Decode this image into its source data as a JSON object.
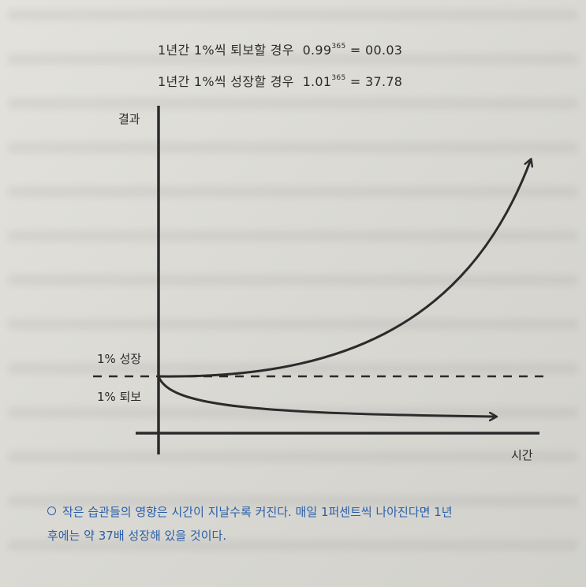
{
  "formulas": {
    "decline": {
      "label": "1년간 1%씩 퇴보할 경우",
      "base": "0.99",
      "exponent": "365",
      "equals": "=",
      "result": "00.03"
    },
    "growth": {
      "label": "1년간 1%씩 성장할 경우",
      "base": "1.01",
      "exponent": "365",
      "equals": "=",
      "result": "37.78"
    }
  },
  "diagram": {
    "y_axis_label": "결과",
    "x_axis_label": "시간",
    "growth_label": "1% 성장",
    "decline_label": "1% 퇴보"
  },
  "caption": {
    "line1": "작은 습관들의 영향은 시간이 지날수록 커진다. 매일 1퍼센트씩 나아진다면 1년",
    "line2": "후에는 약 37배 성장해 있을 것이다."
  },
  "colors": {
    "caption": "#2a5fa8",
    "ink": "#2b2b2b"
  }
}
